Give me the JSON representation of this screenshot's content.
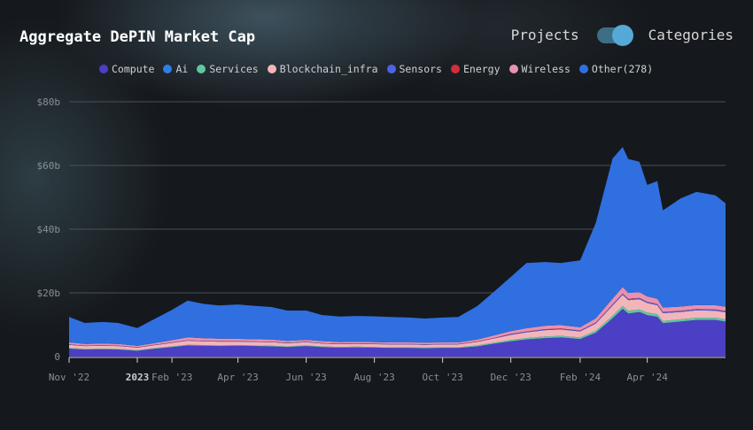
{
  "header": {
    "title": "Aggregate DePIN Market Cap",
    "toggle_left": "Projects",
    "toggle_right": "Categories"
  },
  "colors": {
    "compute": "#4b3fc6",
    "ai": "#2f7de6",
    "services": "#5fc7a0",
    "blockchain_infra": "#f2b5ba",
    "sensors": "#4f63e8",
    "energy": "#d62d3a",
    "wireless": "#e891b0",
    "other": "#2f6fe0"
  },
  "chart_data": {
    "type": "area",
    "stacked": true,
    "title": "Aggregate DePIN Market Cap",
    "y_ticks": [
      "0",
      "$20b",
      "$40b",
      "$60b",
      "$80b"
    ],
    "x_ticks": [
      "Nov '22",
      "2023",
      "Feb '23",
      "Apr '23",
      "Jun '23",
      "Aug '23",
      "Oct '23",
      "Dec '23",
      "Feb '24",
      "Apr '24"
    ],
    "ylim": [
      0,
      80
    ],
    "legend": [
      {
        "name": "Compute",
        "color": "#4b3fc6"
      },
      {
        "name": "Ai",
        "color": "#2f7de6"
      },
      {
        "name": "Services",
        "color": "#5fc7a0"
      },
      {
        "name": "Blockchain_infra",
        "color": "#f2b5ba"
      },
      {
        "name": "Sensors",
        "color": "#4f63e8"
      },
      {
        "name": "Energy",
        "color": "#d62d3a"
      },
      {
        "name": "Wireless",
        "color": "#e891b0"
      },
      {
        "name": "Other(278)",
        "color": "#2f6fe0"
      }
    ],
    "x": [
      "2022-11-01",
      "2022-11-15",
      "2022-12-01",
      "2022-12-15",
      "2023-01-01",
      "2023-01-15",
      "2023-02-01",
      "2023-02-15",
      "2023-03-01",
      "2023-03-15",
      "2023-04-01",
      "2023-04-15",
      "2023-05-01",
      "2023-05-15",
      "2023-06-01",
      "2023-06-15",
      "2023-07-01",
      "2023-07-15",
      "2023-08-01",
      "2023-08-15",
      "2023-09-01",
      "2023-09-15",
      "2023-10-01",
      "2023-10-15",
      "2023-11-01",
      "2023-11-15",
      "2023-12-01",
      "2023-12-15",
      "2024-01-01",
      "2024-01-15",
      "2024-02-01",
      "2024-02-15",
      "2024-03-01",
      "2024-03-10",
      "2024-03-15",
      "2024-03-25",
      "2024-04-01",
      "2024-04-10",
      "2024-04-15",
      "2024-05-01",
      "2024-05-15",
      "2024-06-01",
      "2024-06-10"
    ],
    "series": [
      {
        "name": "Compute",
        "values": [
          2.5,
          2.2,
          2.3,
          2.2,
          1.8,
          2.4,
          3.0,
          3.5,
          3.4,
          3.3,
          3.4,
          3.3,
          3.2,
          3.0,
          3.3,
          3.0,
          2.8,
          2.9,
          2.8,
          2.7,
          2.7,
          2.6,
          2.7,
          2.7,
          3.2,
          4.0,
          4.8,
          5.4,
          5.8,
          6.0,
          5.5,
          7.5,
          12.0,
          15.0,
          13.5,
          14.0,
          13.0,
          12.5,
          10.5,
          11.0,
          11.5,
          11.5,
          11.0
        ]
      },
      {
        "name": "Services",
        "values": [
          0.2,
          0.2,
          0.2,
          0.2,
          0.2,
          0.2,
          0.2,
          0.2,
          0.2,
          0.2,
          0.2,
          0.2,
          0.2,
          0.2,
          0.2,
          0.2,
          0.2,
          0.2,
          0.2,
          0.2,
          0.2,
          0.2,
          0.2,
          0.2,
          0.3,
          0.3,
          0.4,
          0.4,
          0.5,
          0.5,
          0.5,
          0.6,
          0.8,
          0.9,
          0.9,
          0.8,
          0.8,
          0.8,
          0.7,
          0.7,
          0.7,
          0.7,
          0.7
        ]
      },
      {
        "name": "Blockchain_infra",
        "values": [
          1.0,
          0.9,
          0.9,
          0.9,
          0.8,
          0.9,
          1.1,
          1.3,
          1.2,
          1.2,
          1.1,
          1.1,
          1.1,
          1.0,
          1.0,
          0.9,
          0.9,
          0.9,
          0.9,
          0.9,
          0.9,
          0.9,
          0.9,
          0.9,
          1.1,
          1.3,
          1.6,
          1.8,
          2.0,
          2.0,
          1.9,
          2.3,
          3.2,
          3.5,
          3.3,
          3.2,
          3.0,
          2.8,
          2.4,
          2.3,
          2.3,
          2.2,
          2.2
        ]
      },
      {
        "name": "Sensors",
        "values": [
          0.1,
          0.1,
          0.1,
          0.1,
          0.1,
          0.1,
          0.1,
          0.1,
          0.1,
          0.1,
          0.1,
          0.1,
          0.1,
          0.1,
          0.1,
          0.1,
          0.1,
          0.1,
          0.1,
          0.1,
          0.1,
          0.1,
          0.1,
          0.1,
          0.1,
          0.1,
          0.2,
          0.2,
          0.2,
          0.2,
          0.2,
          0.2,
          0.3,
          0.3,
          0.3,
          0.3,
          0.3,
          0.3,
          0.3,
          0.3,
          0.3,
          0.3,
          0.3
        ]
      },
      {
        "name": "Energy",
        "values": [
          0.05,
          0.05,
          0.05,
          0.05,
          0.05,
          0.05,
          0.05,
          0.05,
          0.05,
          0.05,
          0.05,
          0.05,
          0.05,
          0.05,
          0.05,
          0.05,
          0.05,
          0.05,
          0.05,
          0.05,
          0.05,
          0.05,
          0.05,
          0.05,
          0.05,
          0.05,
          0.1,
          0.1,
          0.1,
          0.1,
          0.1,
          0.1,
          0.1,
          0.1,
          0.1,
          0.1,
          0.1,
          0.1,
          0.1,
          0.1,
          0.1,
          0.1,
          0.1
        ]
      },
      {
        "name": "Wireless",
        "values": [
          0.6,
          0.5,
          0.5,
          0.5,
          0.4,
          0.5,
          0.7,
          0.9,
          0.8,
          0.8,
          0.7,
          0.7,
          0.7,
          0.6,
          0.6,
          0.6,
          0.5,
          0.5,
          0.5,
          0.5,
          0.5,
          0.5,
          0.5,
          0.5,
          0.6,
          0.8,
          0.9,
          1.0,
          1.1,
          1.1,
          1.0,
          1.3,
          1.8,
          2.0,
          1.9,
          1.8,
          1.7,
          1.6,
          1.4,
          1.3,
          1.3,
          1.3,
          1.3
        ]
      },
      {
        "name": "Other(278)",
        "values": [
          8.0,
          6.6,
          6.8,
          6.6,
          5.6,
          7.4,
          9.5,
          11.5,
          10.8,
          10.4,
          10.8,
          10.5,
          10.2,
          9.5,
          9.2,
          8.2,
          8.0,
          8.1,
          8.1,
          8.0,
          7.8,
          7.6,
          7.8,
          8.0,
          10.5,
          13.5,
          17.0,
          20.5,
          20.0,
          19.5,
          21.0,
          30.0,
          44.0,
          44.0,
          42.0,
          41.0,
          35.0,
          37.0,
          30.5,
          34.0,
          35.5,
          34.5,
          32.5
        ]
      }
    ]
  }
}
